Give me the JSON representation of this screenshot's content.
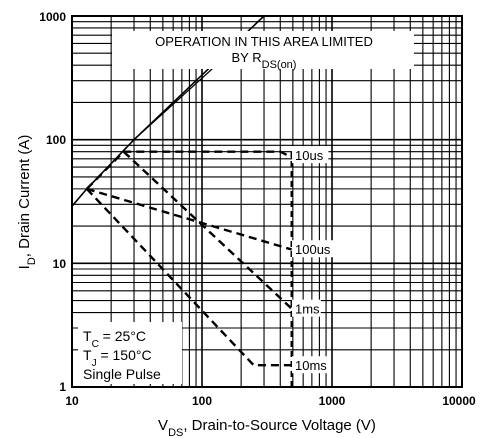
{
  "chart_data": {
    "type": "line",
    "x_scale": "log",
    "y_scale": "log",
    "xlim": [
      10,
      10000
    ],
    "ylim": [
      1,
      1000
    ],
    "grid": true,
    "x_ticks": [
      "10",
      "100",
      "1000",
      "10000"
    ],
    "y_ticks": [
      "1",
      "10",
      "100",
      "1000"
    ],
    "xlabel": {
      "main": "V",
      "sub": "DS",
      "rest": ", Drain-to-Source Voltage (V)"
    },
    "ylabel": {
      "main": "I",
      "sub": "D",
      "rest": ", Drain Current (A)"
    },
    "annotation": {
      "line1": "OPERATION IN THIS AREA LIMITED",
      "line2_main": "BY R",
      "line2_sub": "DS(on)"
    },
    "conditions": {
      "tc": {
        "main": "T",
        "sub": "C",
        "rest": " = 25°C"
      },
      "tj": {
        "main": "T",
        "sub": "J",
        "rest": " = 150°C"
      },
      "pulse": "Single Pulse"
    },
    "rds_on_line": {
      "x": [
        10,
        13,
        30,
        300
      ],
      "y": [
        29,
        40,
        100,
        1000
      ]
    },
    "series": [
      {
        "name": "10us",
        "style": "dashed",
        "x": [
          13,
          25,
          400,
          490,
          490
        ],
        "y": [
          40,
          80,
          80,
          72,
          75
        ]
      },
      {
        "name": "100us",
        "style": "dashed",
        "x": [
          13,
          480,
          490
        ],
        "y": [
          40,
          13,
          13
        ]
      },
      {
        "name": "1ms",
        "style": "dashed",
        "x": [
          25,
          490
        ],
        "y": [
          80,
          4.3
        ]
      },
      {
        "name": "10ms",
        "style": "dashed",
        "x": [
          13,
          250,
          490
        ],
        "y": [
          40,
          1.5,
          1.5
        ]
      }
    ],
    "dc_limit": {
      "x": [
        490,
        490
      ],
      "y": [
        1,
        80
      ]
    }
  }
}
